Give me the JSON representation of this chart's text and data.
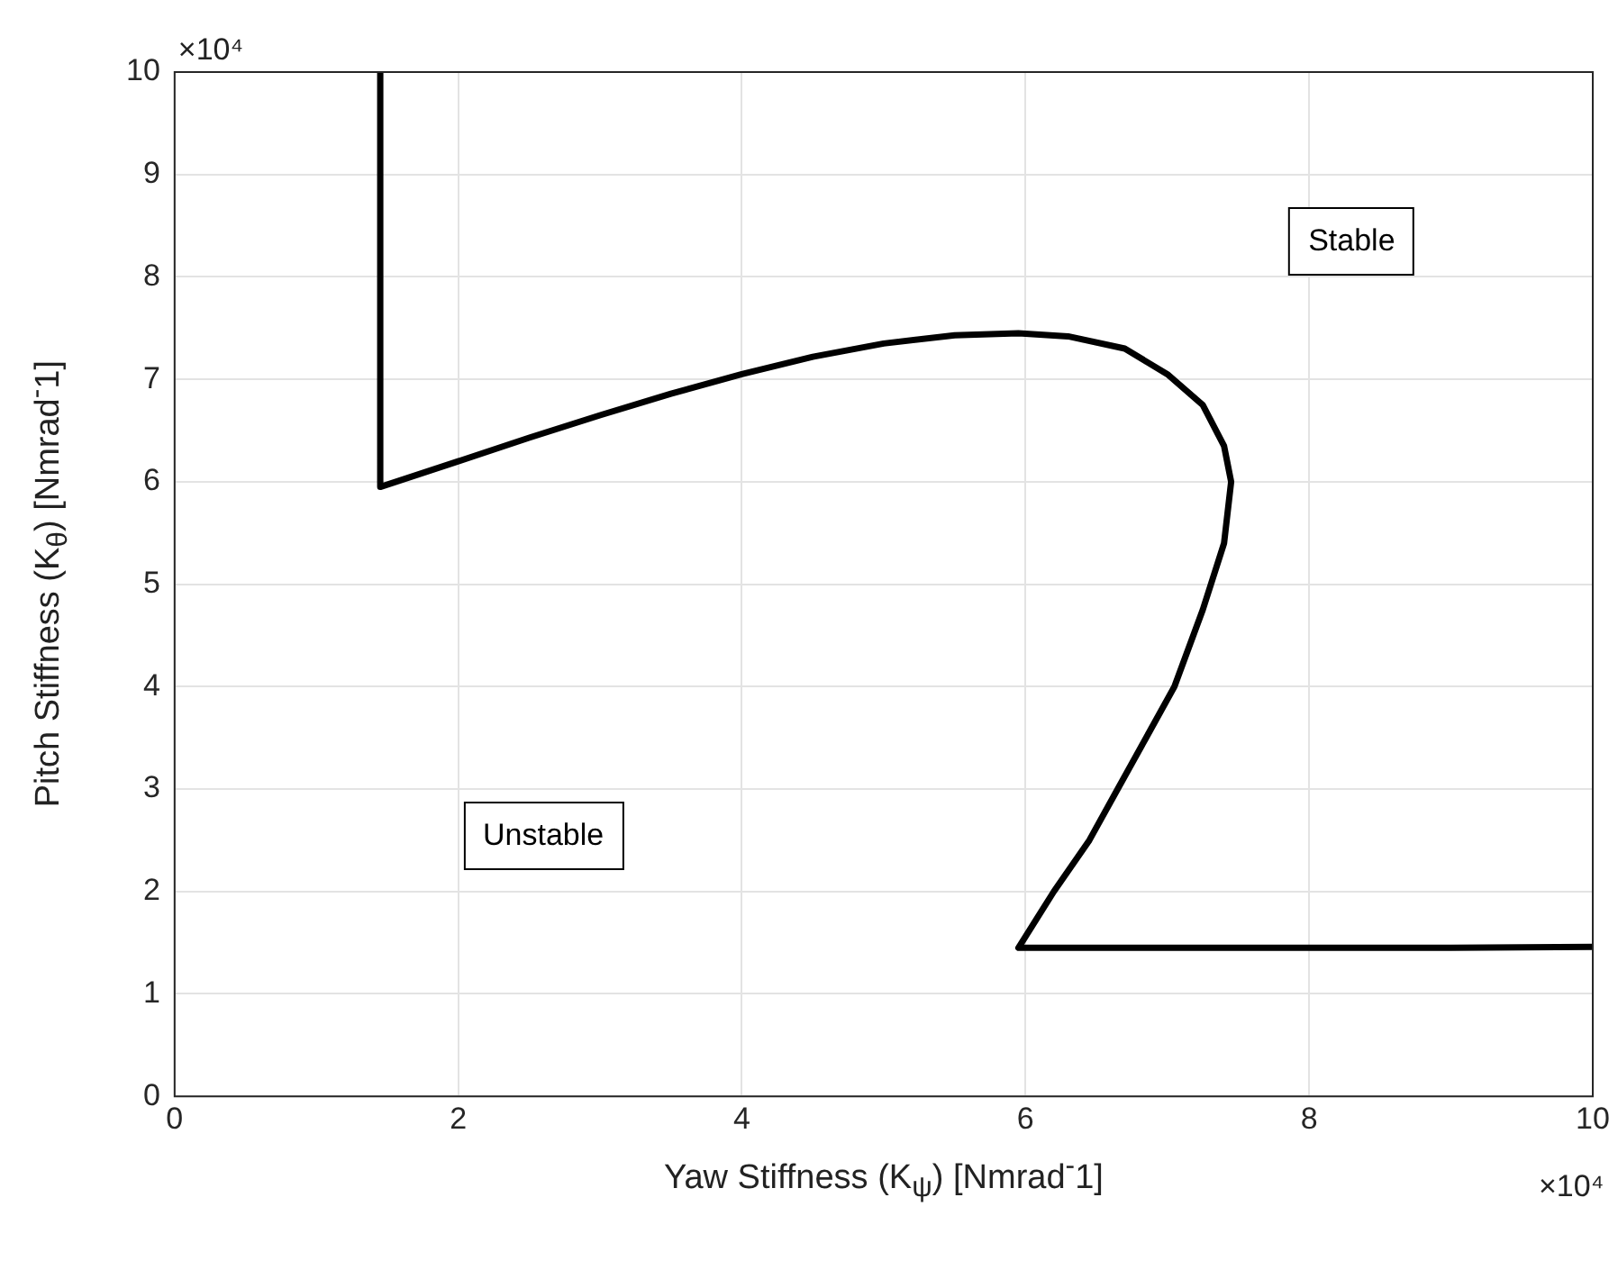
{
  "chart_data": {
    "type": "line",
    "xlabel": "Yaw Stiffness (K$_{ψ}$) [Nmrad$^{-}$1]",
    "ylabel": "Pitch Stiffness (K$_{θ}$) [Nmrad$^{-}$1]",
    "series": [
      {
        "color": "#000000",
        "x": [
          1.45,
          1.45,
          2,
          2.5,
          3,
          3.5,
          4,
          4.5,
          5,
          5.5,
          5.95,
          6.3,
          6.7,
          7,
          7.25,
          7.4,
          7.45,
          7.4,
          7.25,
          7.05,
          6.85,
          6.65,
          6.45,
          6.2,
          5.95,
          7,
          8,
          9,
          10
        ],
        "values": [
          10,
          5.95,
          6.2,
          6.43,
          6.65,
          6.86,
          7.05,
          7.22,
          7.35,
          7.43,
          7.45,
          7.42,
          7.3,
          7.05,
          6.75,
          6.35,
          6.0,
          5.4,
          4.75,
          4.0,
          3.5,
          3.0,
          2.5,
          2.0,
          1.45,
          1.45,
          1.45,
          1.45,
          1.46
        ]
      }
    ],
    "xlim": [
      0,
      10
    ],
    "xticks": [
      0,
      2,
      4,
      6,
      8,
      10
    ],
    "ylim": [
      0,
      10
    ],
    "yticks": [
      0,
      1,
      2,
      3,
      4,
      5,
      6,
      7,
      8,
      9,
      10
    ],
    "grid": true,
    "marker": "none",
    "line_style": "solid",
    "annotations": [
      "×10⁴",
      "×10⁴",
      "Stable",
      "Unstable"
    ]
  }
}
